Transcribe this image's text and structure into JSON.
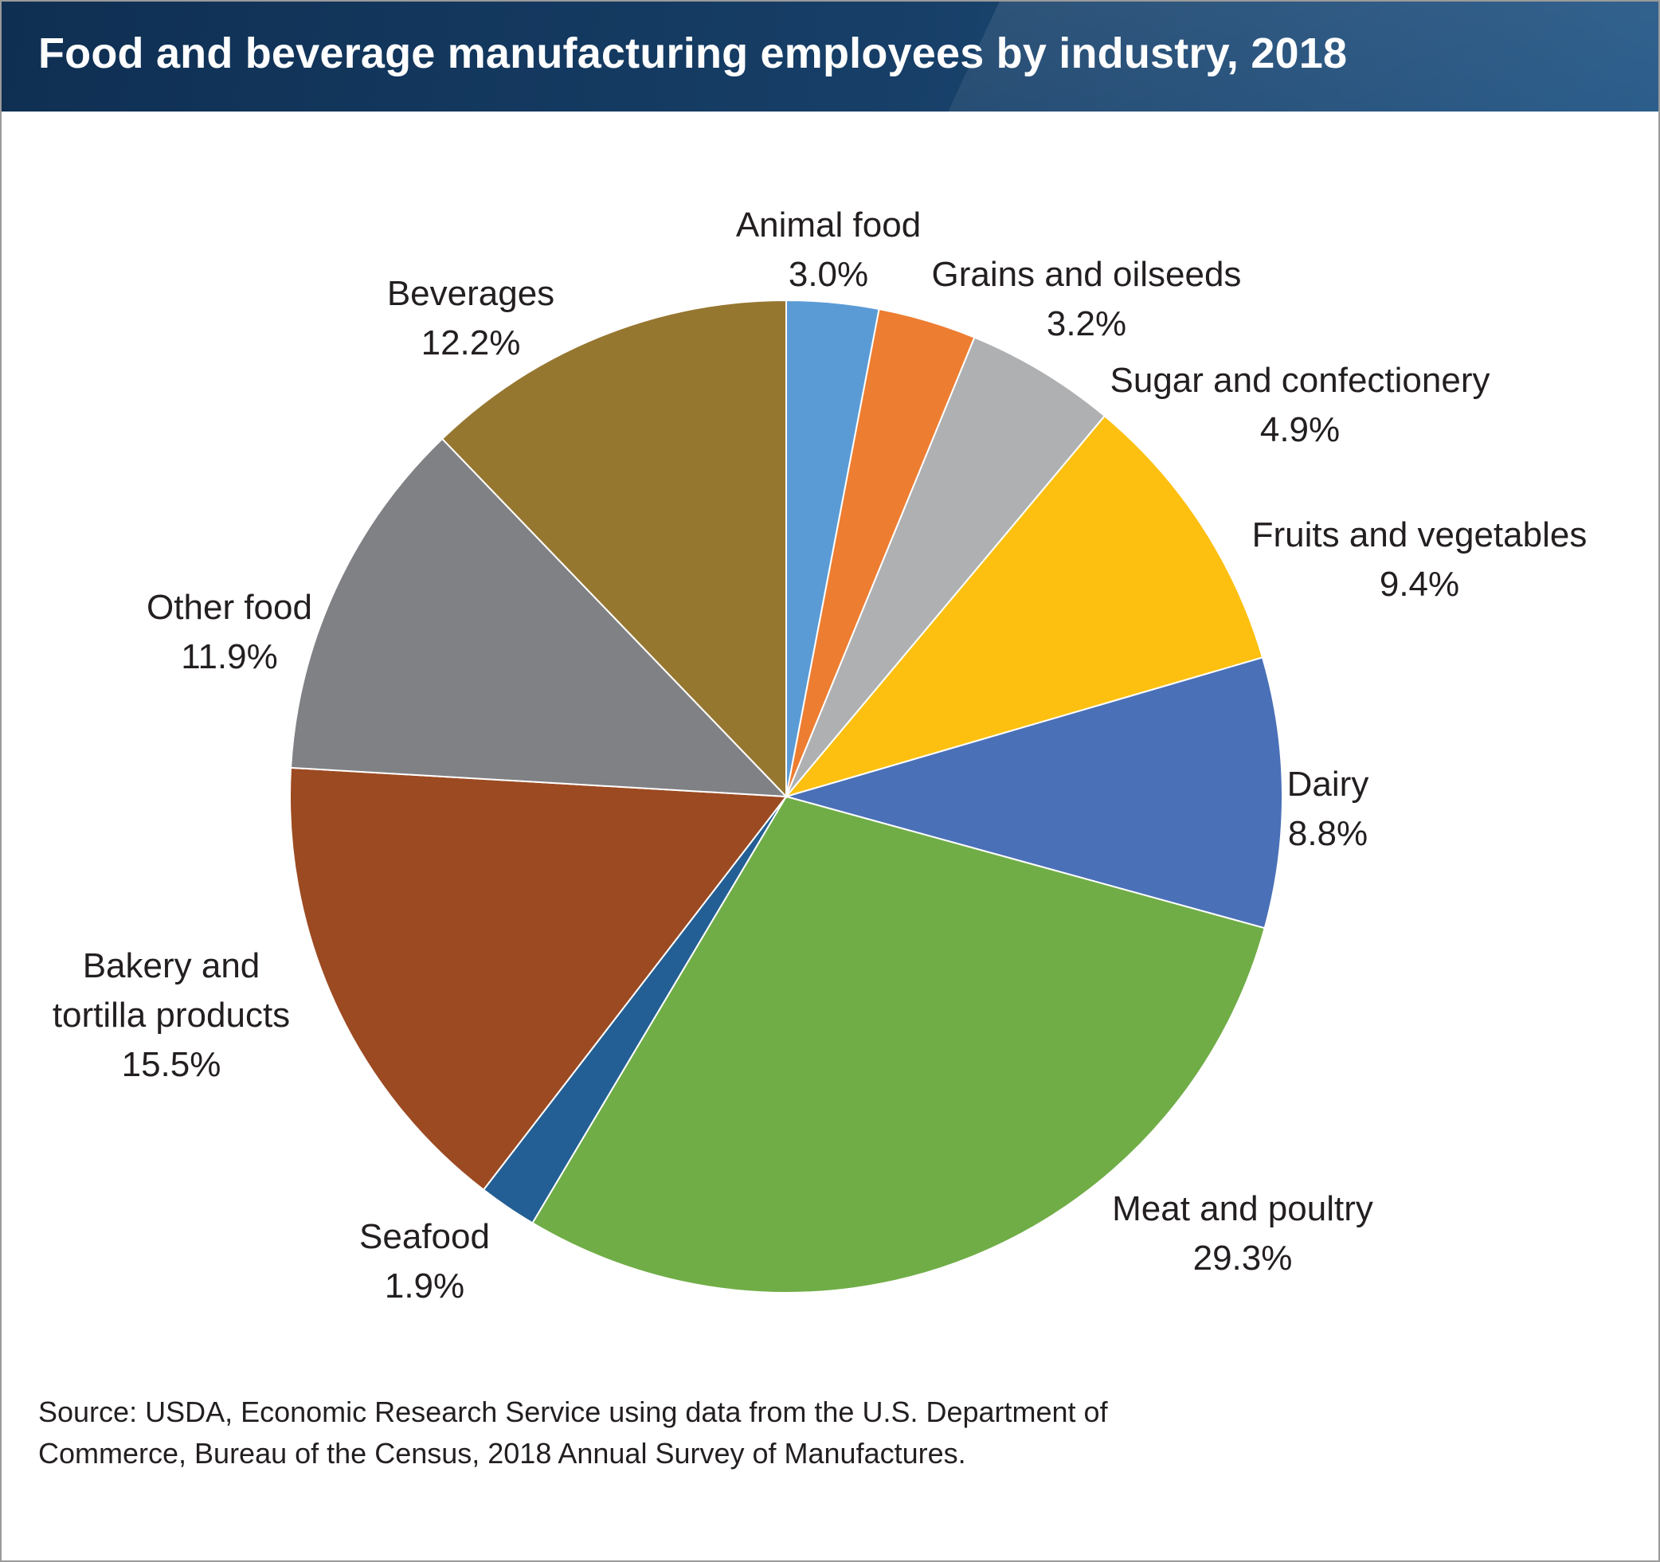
{
  "header": {
    "title": "Food and beverage manufacturing employees by industry, 2018"
  },
  "chart_data": {
    "type": "pie",
    "title": "Food and beverage manufacturing employees by industry, 2018",
    "unit": "%",
    "slices": [
      {
        "label": "Animal food",
        "label_lines": [
          "Animal food"
        ],
        "value": 3.0,
        "value_label": "3.0%",
        "color": "#5b9bd5"
      },
      {
        "label": "Grains and oilseeds",
        "label_lines": [
          "Grains and oilseeds"
        ],
        "value": 3.2,
        "value_label": "3.2%",
        "color": "#ed7d31"
      },
      {
        "label": "Sugar and confectionery",
        "label_lines": [
          "Sugar and confectionery"
        ],
        "value": 4.9,
        "value_label": "4.9%",
        "color": "#afb0b2"
      },
      {
        "label": "Fruits and vegetables",
        "label_lines": [
          "Fruits and vegetables"
        ],
        "value": 9.4,
        "value_label": "9.4%",
        "color": "#fdc010"
      },
      {
        "label": "Dairy",
        "label_lines": [
          "Dairy"
        ],
        "value": 8.8,
        "value_label": "8.8%",
        "color": "#4a70b7"
      },
      {
        "label": "Meat and poultry",
        "label_lines": [
          "Meat and poultry"
        ],
        "value": 29.3,
        "value_label": "29.3%",
        "color": "#70ad47"
      },
      {
        "label": "Seafood",
        "label_lines": [
          "Seafood"
        ],
        "value": 1.9,
        "value_label": "1.9%",
        "color": "#235f94"
      },
      {
        "label": "Bakery and tortilla products",
        "label_lines": [
          "Bakery and",
          "tortilla products"
        ],
        "value": 15.5,
        "value_label": "15.5%",
        "color": "#9c4a22"
      },
      {
        "label": "Other food",
        "label_lines": [
          "Other food"
        ],
        "value": 11.9,
        "value_label": "11.9%",
        "color": "#808184"
      },
      {
        "label": "Beverages",
        "label_lines": [
          "Beverages"
        ],
        "value": 12.2,
        "value_label": "12.2%",
        "color": "#967730"
      }
    ]
  },
  "source": {
    "line1": "Source: USDA, Economic Research Service using data from the U.S. Department of",
    "line2": "Commerce, Bureau of the Census, 2018 Annual Survey of Manufactures."
  }
}
